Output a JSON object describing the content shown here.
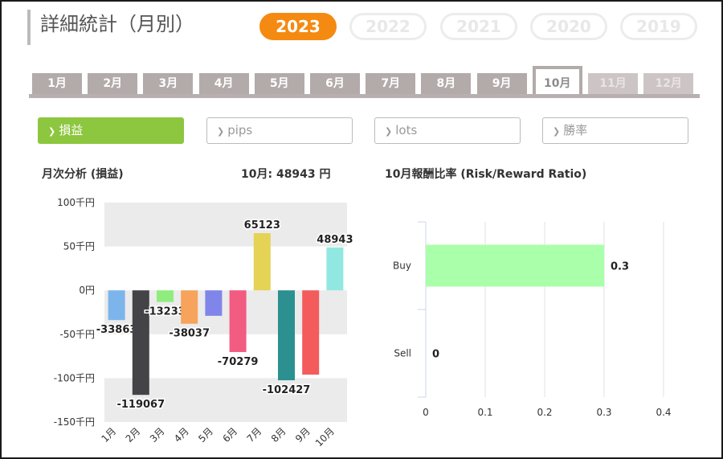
{
  "header": {
    "title": "詳細統計（月別）"
  },
  "years": [
    {
      "label": "2023",
      "active": true
    },
    {
      "label": "2022",
      "active": false
    },
    {
      "label": "2021",
      "active": false
    },
    {
      "label": "2020",
      "active": false
    },
    {
      "label": "2019",
      "active": false
    }
  ],
  "month_tabs": [
    {
      "label": "1月",
      "state": "normal"
    },
    {
      "label": "2月",
      "state": "normal"
    },
    {
      "label": "3月",
      "state": "normal"
    },
    {
      "label": "4月",
      "state": "normal"
    },
    {
      "label": "5月",
      "state": "normal"
    },
    {
      "label": "6月",
      "state": "normal"
    },
    {
      "label": "7月",
      "state": "normal"
    },
    {
      "label": "8月",
      "state": "normal"
    },
    {
      "label": "9月",
      "state": "normal"
    },
    {
      "label": "10月",
      "state": "active"
    },
    {
      "label": "11月",
      "state": "disabled"
    },
    {
      "label": "12月",
      "state": "disabled"
    }
  ],
  "metrics": [
    {
      "label": "損益",
      "active": true
    },
    {
      "label": "pips",
      "active": false
    },
    {
      "label": "lots",
      "active": false
    },
    {
      "label": "勝率",
      "active": false
    }
  ],
  "icons": {
    "chevron": "chevron-right-icon",
    "chevron_glyph": "❯"
  },
  "colors": {
    "accent": "#f48a12",
    "metric_active": "#8dc63f",
    "tab": "#b3aaaa"
  },
  "left_panel": {
    "title": "月次分析 (損益)",
    "summary": "10月:  48943 円"
  },
  "right_panel": {
    "title": "10月報酬比率 (Risk/Reward Ratio)"
  },
  "chart_data": [
    {
      "type": "bar",
      "title": "月次分析 (損益)",
      "categories": [
        "1月",
        "2月",
        "3月",
        "4月",
        "5月",
        "6月",
        "7月",
        "8月",
        "9月",
        "10月"
      ],
      "values": [
        -33863,
        -119067,
        -13233,
        -38037,
        -29000,
        -70279,
        65123,
        -102427,
        -96000,
        48943
      ],
      "data_labels": [
        "-33863",
        "-119067",
        "-13233",
        "-38037",
        "",
        "-70279",
        "65123",
        "-102427",
        "",
        "48943"
      ],
      "bar_colors": [
        "#7cb5ec",
        "#434348",
        "#90ed7d",
        "#f7a35c",
        "#8085e9",
        "#f15c80",
        "#e4d354",
        "#2b908f",
        "#f45b5b",
        "#91e8e1"
      ],
      "y_ticks": [
        "100千円",
        "50千円",
        "0円",
        "-50千円",
        "-100千円",
        "-150千円"
      ],
      "y_tick_values": [
        100000,
        50000,
        0,
        -50000,
        -100000,
        -150000
      ],
      "ylim": [
        -150000,
        100000
      ],
      "grid": "alternating bands"
    },
    {
      "type": "bar",
      "orientation": "horizontal",
      "title": "10月報酬比率 (Risk/Reward Ratio)",
      "categories": [
        "Buy",
        "Sell"
      ],
      "values": [
        0.3,
        0
      ],
      "data_labels": [
        "0.3",
        "0"
      ],
      "bar_color": "#aaffaa",
      "x_ticks": [
        "0",
        "0.1",
        "0.2",
        "0.3",
        "0.4"
      ],
      "xlim": [
        0,
        0.4
      ],
      "grid": "vertical lines"
    }
  ]
}
